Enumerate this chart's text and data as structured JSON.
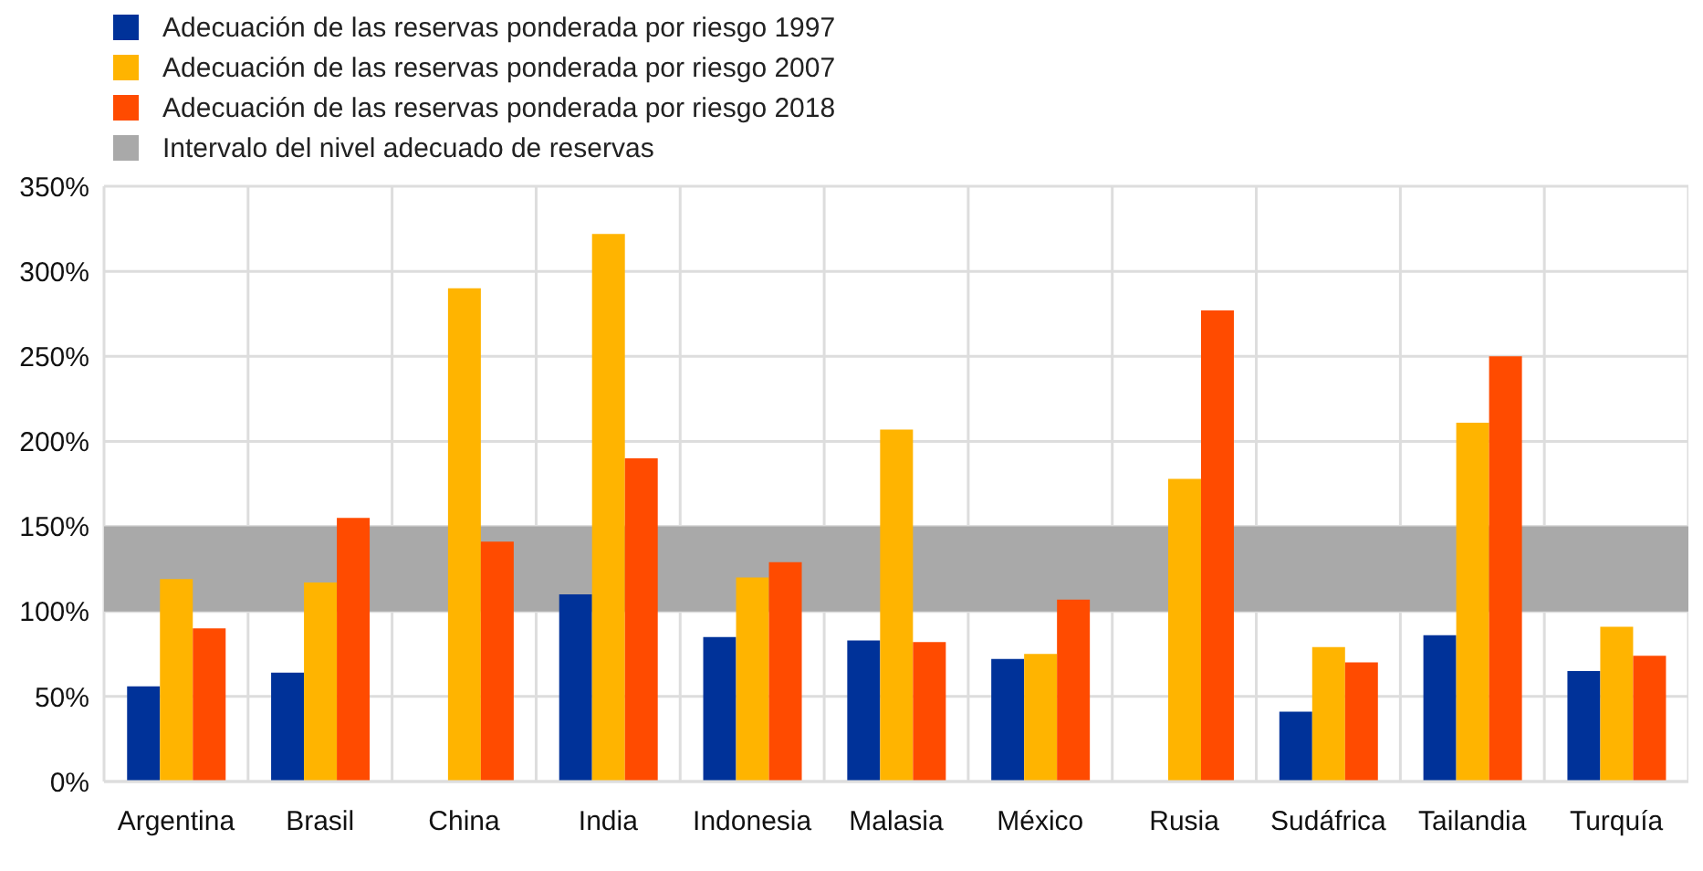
{
  "chart_data": {
    "type": "bar",
    "categories": [
      "Argentina",
      "Brasil",
      "China",
      "India",
      "Indonesia",
      "Malasia",
      "México",
      "Rusia",
      "Sudáfrica",
      "Tailandia",
      "Turquía"
    ],
    "series": [
      {
        "name": "Adecuación de las reservas ponderada por riesgo 1997",
        "color": "#003299",
        "values": [
          56,
          64,
          null,
          110,
          85,
          83,
          72,
          null,
          41,
          86,
          65
        ]
      },
      {
        "name": "Adecuación de las reservas ponderada por riesgo 2007",
        "color": "#ffb400",
        "values": [
          119,
          117,
          290,
          322,
          120,
          207,
          75,
          178,
          79,
          211,
          91
        ]
      },
      {
        "name": "Adecuación de las reservas ponderada por riesgo 2018",
        "color": "#ff4b00",
        "values": [
          90,
          155,
          141,
          190,
          129,
          82,
          107,
          277,
          70,
          250,
          74
        ]
      }
    ],
    "bands": [
      {
        "axis": "y",
        "from": 100,
        "to": 150,
        "label": "Intervalo del nivel adecuado de reservas",
        "color": "#a9a9a9"
      }
    ],
    "ylim": [
      0,
      350
    ],
    "yticks": [
      {
        "value": 0,
        "label": "0%"
      },
      {
        "value": 50,
        "label": "50%"
      },
      {
        "value": 100,
        "label": "100%"
      },
      {
        "value": 150,
        "label": "150%"
      },
      {
        "value": 200,
        "label": "200%"
      },
      {
        "value": 250,
        "label": "250%"
      },
      {
        "value": 300,
        "label": "300%"
      },
      {
        "value": 350,
        "label": "350%"
      }
    ],
    "grid": true,
    "legend": "top left"
  }
}
